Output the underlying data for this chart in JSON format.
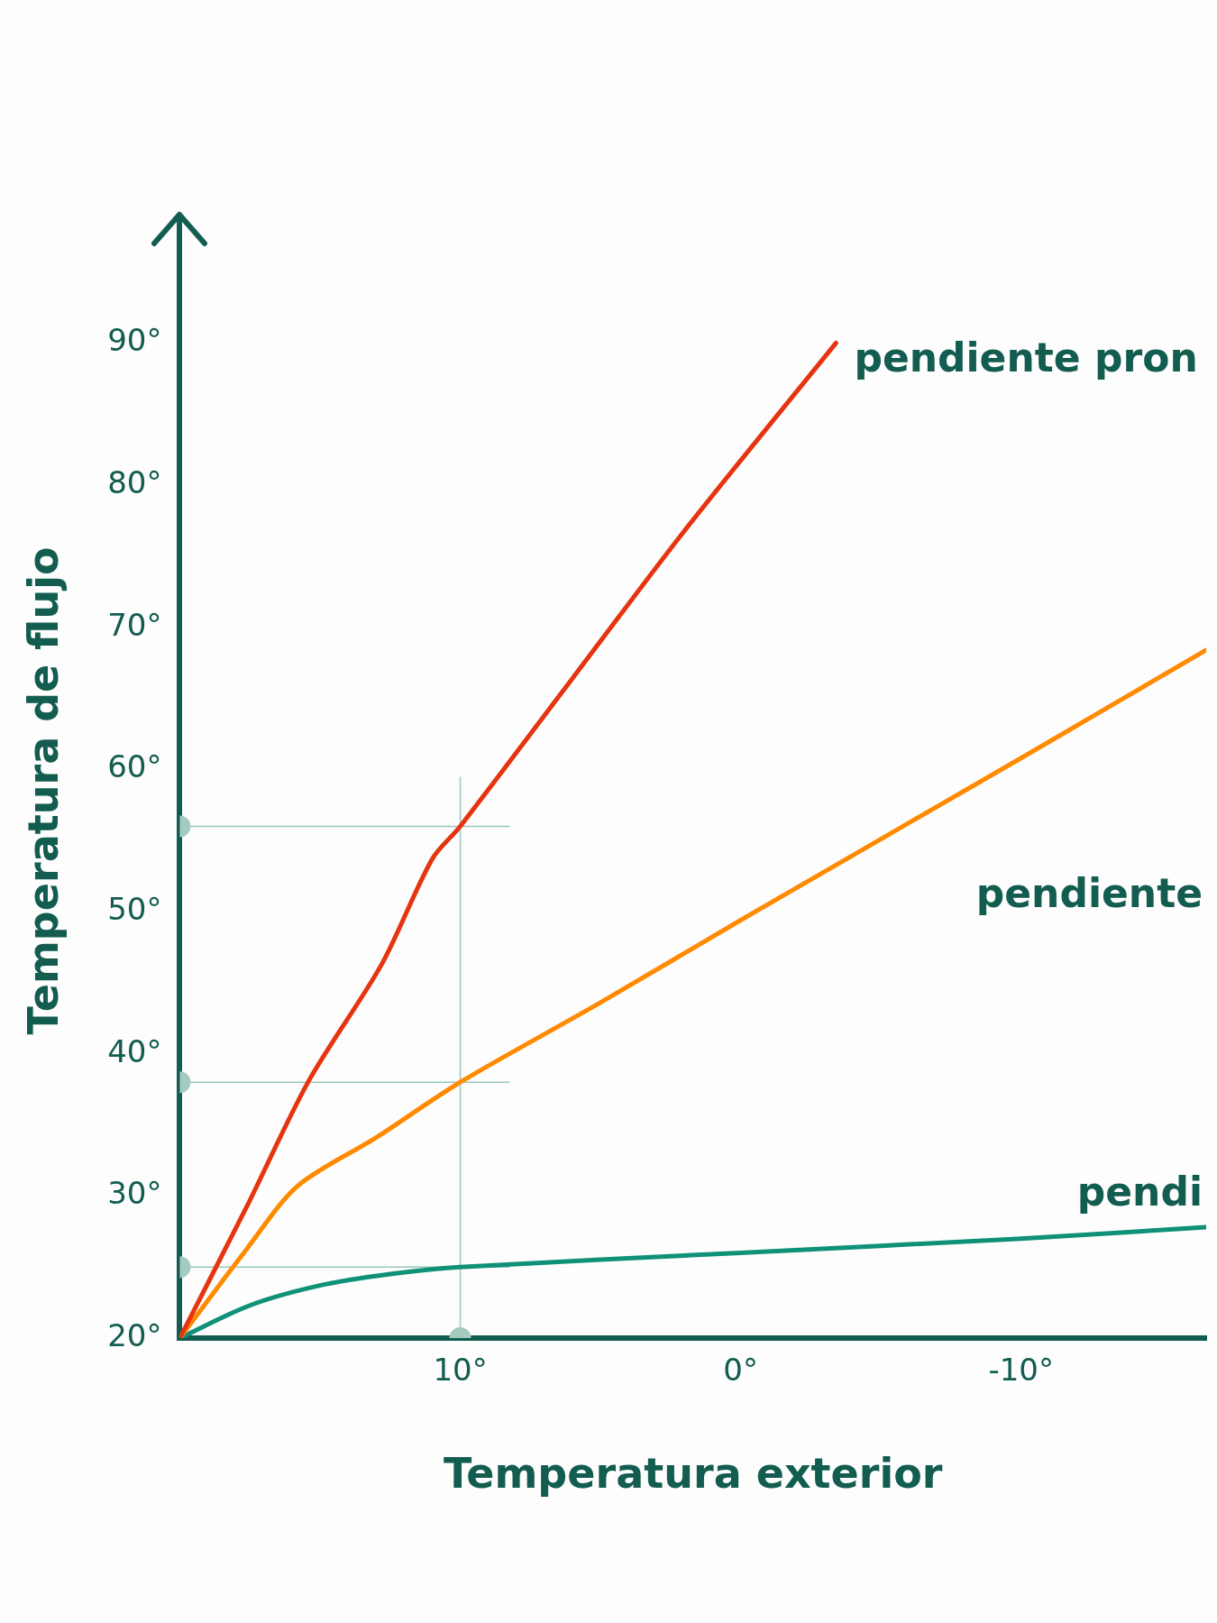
{
  "chart_data": {
    "type": "line",
    "xlabel": "Temperatura exterior",
    "ylabel": "Temperatura de flujo",
    "xlim": [
      20,
      -16.6
    ],
    "xticks": [
      {
        "value": 10,
        "label": "10°"
      },
      {
        "value": 0,
        "label": "0°"
      },
      {
        "value": -10,
        "label": "-10°"
      }
    ],
    "ylim": [
      20,
      97
    ],
    "yticks": [
      {
        "value": 20,
        "label": "20°"
      },
      {
        "value": 30,
        "label": "30°"
      },
      {
        "value": 40,
        "label": "40°"
      },
      {
        "value": 50,
        "label": "50°"
      },
      {
        "value": 60,
        "label": "60°"
      },
      {
        "value": 70,
        "label": "70°"
      },
      {
        "value": 80,
        "label": "80°"
      },
      {
        "value": 90,
        "label": "90°"
      }
    ],
    "grid": false,
    "legend": false,
    "marker": "none",
    "line_style": "solid",
    "series": [
      {
        "name": "pendiente pron",
        "color": "#e5340f",
        "x": [
          20,
          17.6,
          15.4,
          12.8,
          11,
          10,
          6,
          2,
          -3.4
        ],
        "values": [
          20,
          29.3,
          38.1,
          46.3,
          53.7,
          56,
          66.4,
          76.8,
          90
        ]
      },
      {
        "name": "pendiente",
        "color": "#ff8a00",
        "x": [
          20,
          17.6,
          15.8,
          13,
          10,
          5,
          0,
          -10,
          -16.6
        ],
        "values": [
          20,
          26.3,
          30.7,
          34.1,
          38,
          43.6,
          49.4,
          60.8,
          68.4
        ]
      },
      {
        "name": "pendi",
        "color": "#0f9177",
        "x": [
          20,
          17.5,
          15,
          12.5,
          10,
          0,
          -10,
          -16.6
        ],
        "values": [
          20,
          22.3,
          23.7,
          24.5,
          25,
          26,
          27,
          27.8
        ]
      },
      {
        "type": "scatter",
        "color": "#a5cbc0",
        "marker": "circle",
        "x": [
          20,
          20,
          20,
          10
        ],
        "values": [
          56,
          38,
          25,
          20
        ]
      }
    ],
    "ref_lines": [
      {
        "axis": "y",
        "value": 56
      },
      {
        "axis": "y",
        "value": 38
      },
      {
        "axis": "y",
        "value": 25
      },
      {
        "axis": "x",
        "value": 10
      }
    ]
  }
}
